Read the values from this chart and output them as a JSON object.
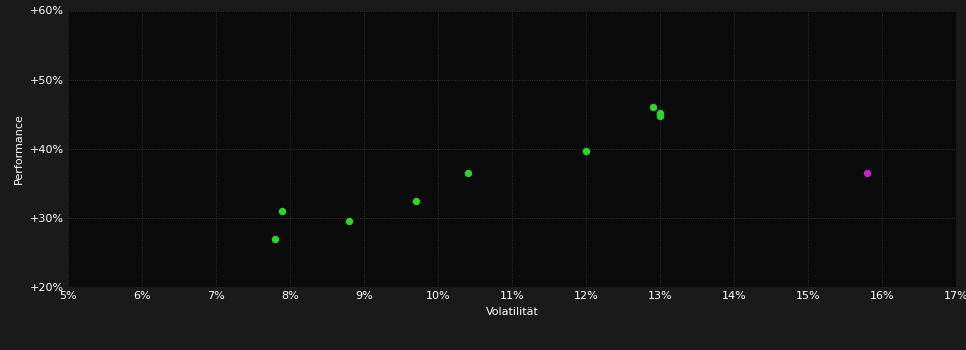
{
  "background_color": "#1a1a1a",
  "plot_bg_color": "#0a0a0a",
  "grid_color": "#3a3a3a",
  "text_color": "#ffffff",
  "xlabel": "Volatilität",
  "ylabel": "Performance",
  "xlim": [
    0.05,
    0.17
  ],
  "ylim": [
    0.2,
    0.6
  ],
  "xticks": [
    0.05,
    0.06,
    0.07,
    0.08,
    0.09,
    0.1,
    0.11,
    0.12,
    0.13,
    0.14,
    0.15,
    0.16,
    0.17
  ],
  "yticks": [
    0.2,
    0.3,
    0.4,
    0.5,
    0.6
  ],
  "green_points": [
    [
      0.078,
      0.27
    ],
    [
      0.079,
      0.31
    ],
    [
      0.088,
      0.295
    ],
    [
      0.097,
      0.325
    ],
    [
      0.104,
      0.365
    ],
    [
      0.12,
      0.397
    ],
    [
      0.129,
      0.46
    ],
    [
      0.13,
      0.452
    ],
    [
      0.13,
      0.447
    ]
  ],
  "magenta_points": [
    [
      0.158,
      0.365
    ]
  ],
  "green_color": "#22dd22",
  "magenta_color": "#cc22cc",
  "marker_size": 28,
  "label_fontsize": 8,
  "tick_fontsize": 8
}
